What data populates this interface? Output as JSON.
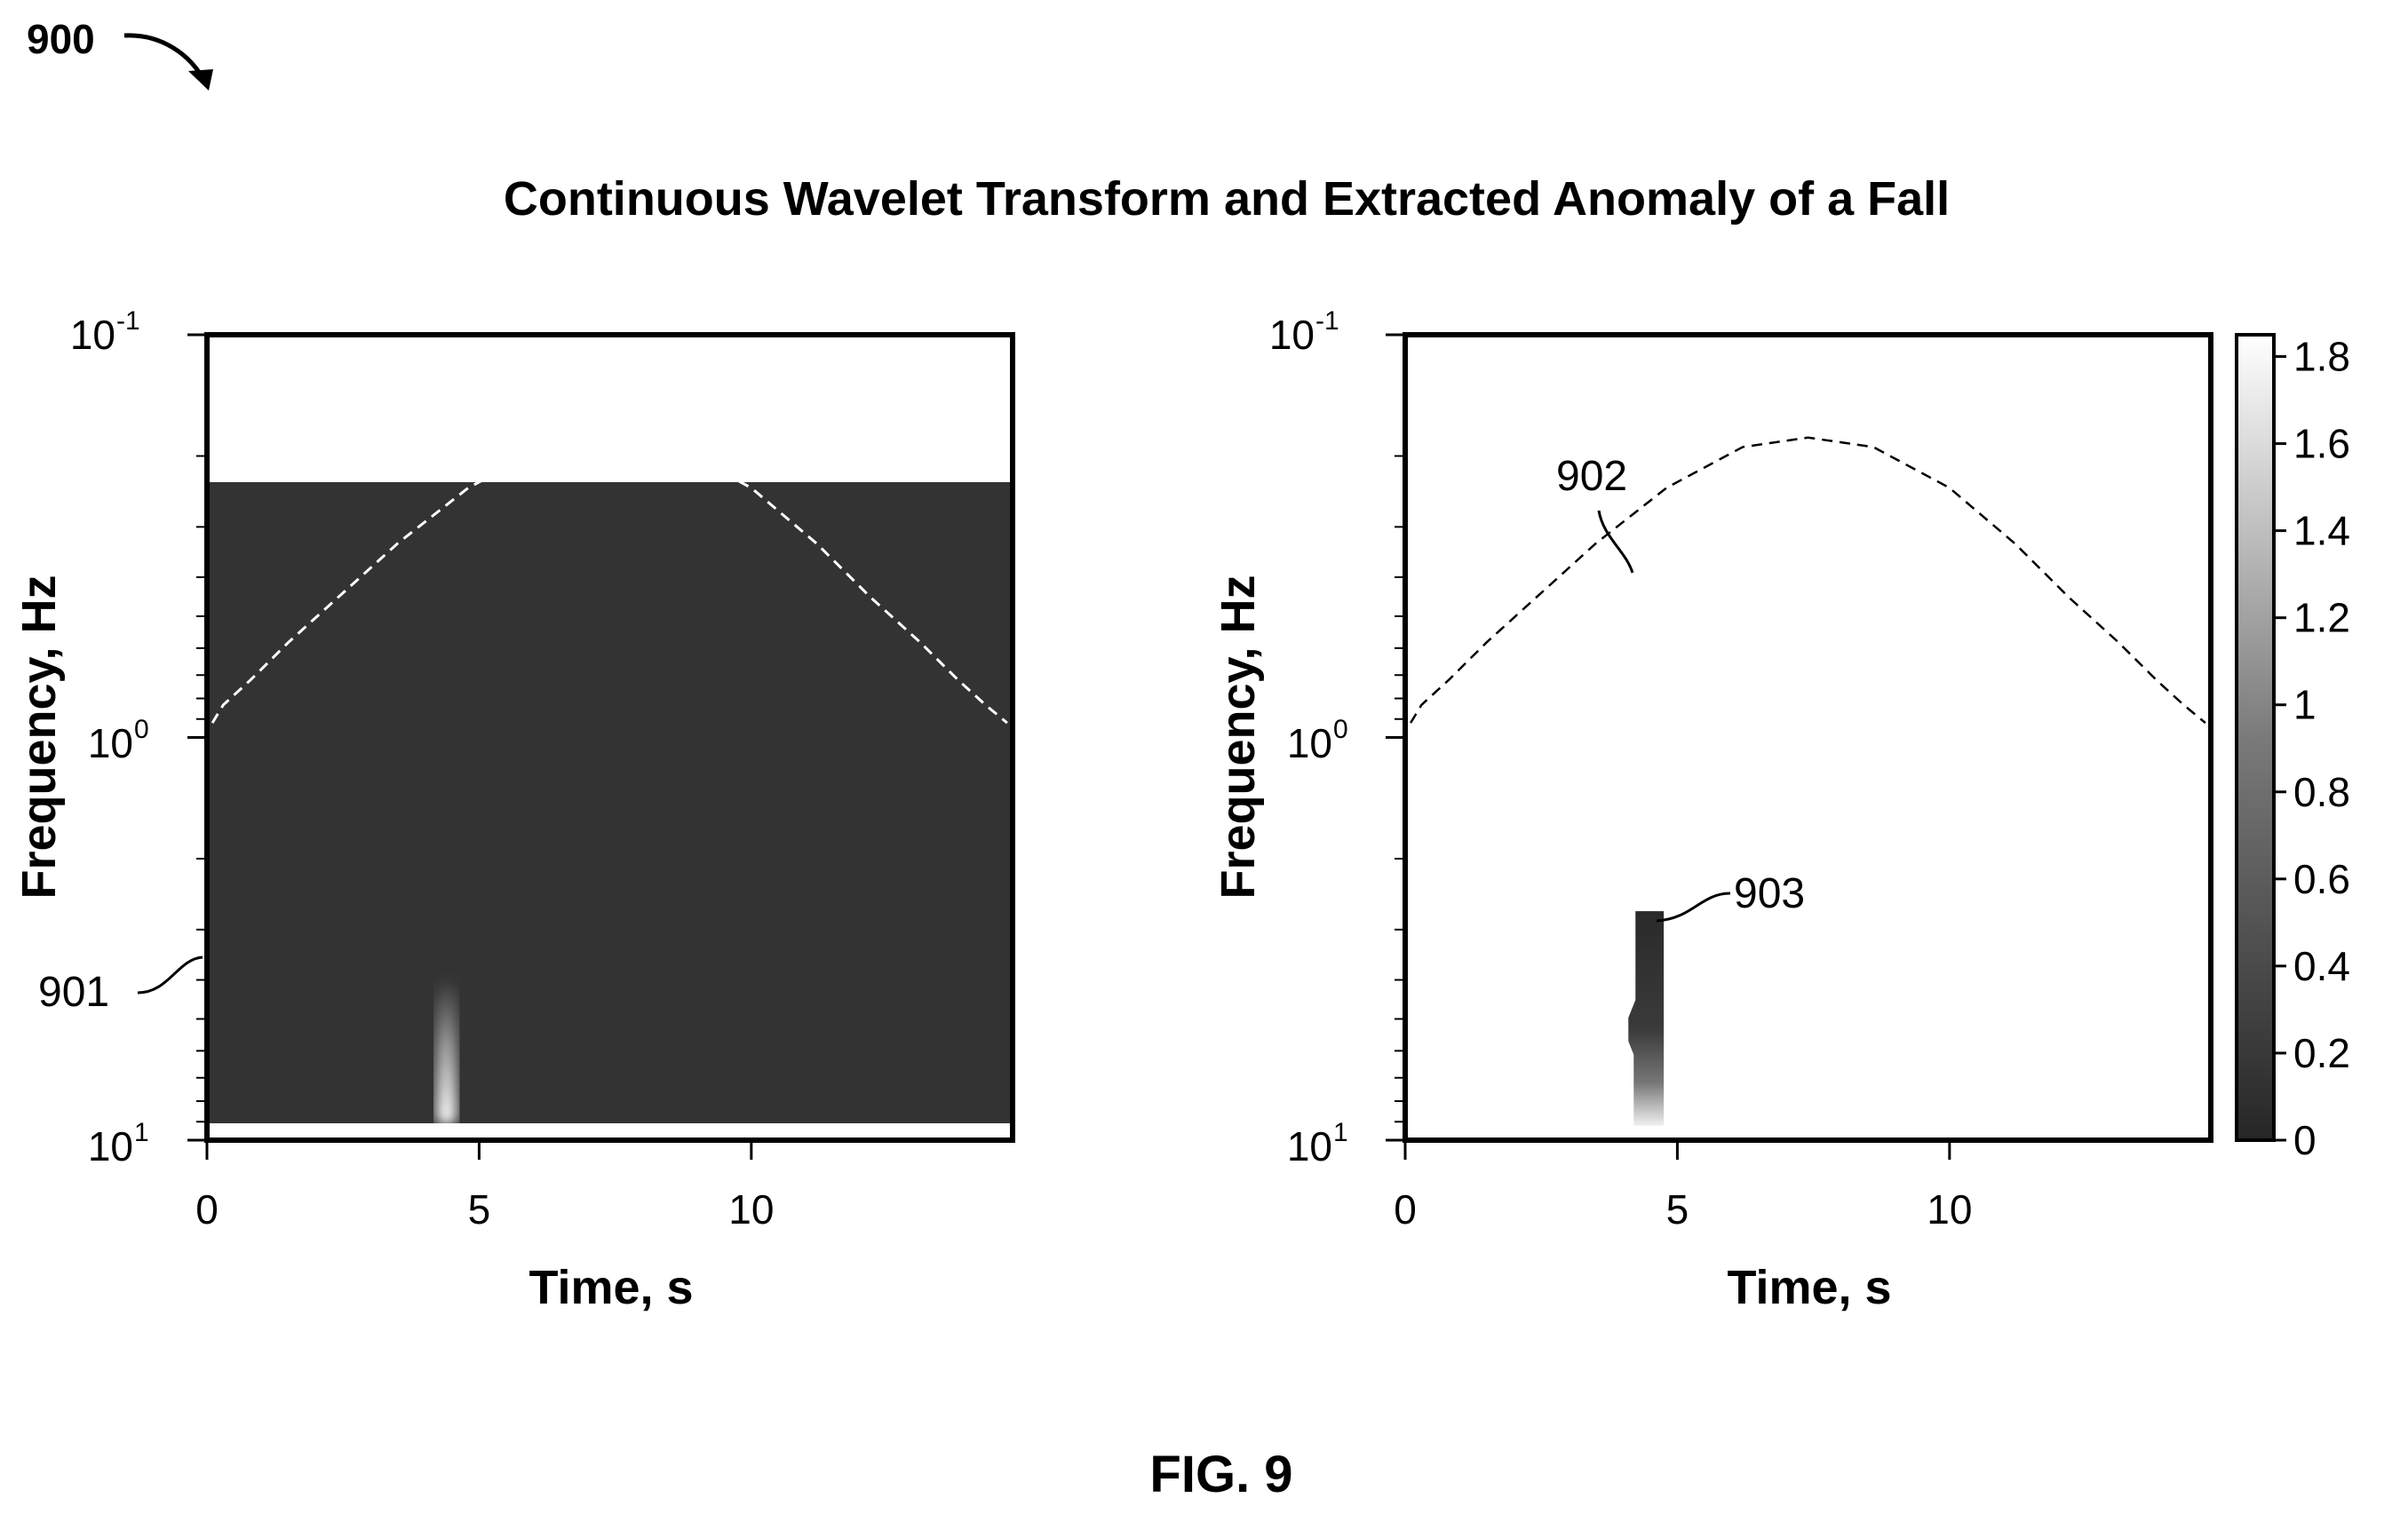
{
  "figure": {
    "number_label": "900",
    "caption": "FIG. 9",
    "title": "Continuous Wavelet Transform and Extracted Anomaly of a Fall"
  },
  "chart_data": [
    {
      "type": "heatmap",
      "panel": "left",
      "title": "",
      "xlabel": "Time, s",
      "ylabel": "Frequency, Hz",
      "xlim": [
        0,
        14.8
      ],
      "x_ticks": [
        0,
        5,
        10
      ],
      "x_tick_labels": [
        "0",
        "5",
        "10"
      ],
      "y_scale": "log",
      "y_ticks": [
        {
          "base": "10",
          "exp": "-1"
        },
        {
          "base": "10",
          "exp": "0"
        },
        {
          "base": "10",
          "exp": "1"
        }
      ],
      "background": "#333333",
      "cone_of_influence": {
        "style": "dashed",
        "color": "#ffffff",
        "label": "901",
        "points": [
          [
            0.1,
            0.92
          ],
          [
            0.3,
            0.83
          ],
          [
            0.8,
            0.72
          ],
          [
            1.5,
            0.58
          ],
          [
            2.4,
            0.45
          ],
          [
            3.5,
            0.33
          ],
          [
            4.8,
            0.24
          ],
          [
            6.2,
            0.19
          ],
          [
            7.4,
            0.18
          ],
          [
            8.6,
            0.19
          ],
          [
            10.0,
            0.24
          ],
          [
            11.2,
            0.33
          ],
          [
            12.2,
            0.45
          ],
          [
            13.1,
            0.58
          ],
          [
            13.8,
            0.72
          ],
          [
            14.3,
            0.83
          ],
          [
            14.7,
            0.92
          ]
        ]
      },
      "hotspot": {
        "t": 4.4,
        "f_min": 4.0,
        "f_max": 9.2,
        "color": "#ffffff"
      }
    },
    {
      "type": "heatmap",
      "panel": "right",
      "title": "",
      "xlabel": "Time, s",
      "ylabel": "Frequency, Hz",
      "xlim": [
        0,
        14.8
      ],
      "x_ticks": [
        0,
        5,
        10
      ],
      "x_tick_labels": [
        "0",
        "5",
        "10"
      ],
      "y_scale": "log",
      "y_ticks": [
        {
          "base": "10",
          "exp": "-1"
        },
        {
          "base": "10",
          "exp": "0"
        },
        {
          "base": "10",
          "exp": "1"
        }
      ],
      "background": "#ffffff",
      "cone_of_influence": {
        "style": "dashed",
        "color": "#000000",
        "label": "902",
        "points": [
          [
            0.1,
            0.92
          ],
          [
            0.3,
            0.83
          ],
          [
            0.8,
            0.72
          ],
          [
            1.5,
            0.58
          ],
          [
            2.4,
            0.45
          ],
          [
            3.5,
            0.33
          ],
          [
            4.8,
            0.24
          ],
          [
            6.2,
            0.19
          ],
          [
            7.4,
            0.18
          ],
          [
            8.6,
            0.19
          ],
          [
            10.0,
            0.24
          ],
          [
            11.2,
            0.33
          ],
          [
            12.2,
            0.45
          ],
          [
            13.1,
            0.58
          ],
          [
            13.8,
            0.72
          ],
          [
            14.3,
            0.83
          ],
          [
            14.7,
            0.92
          ]
        ]
      },
      "anomaly": {
        "label": "903",
        "t_min": 4.1,
        "t_max": 4.75,
        "f_min": 2.7,
        "f_max": 9.2
      },
      "colorbar": {
        "ticks": [
          "1.8",
          "1.6",
          "1.4",
          "1.2",
          "1",
          "0.8",
          "0.6",
          "0.4",
          "0.2",
          "0"
        ],
        "range": [
          0,
          1.85
        ]
      }
    }
  ]
}
